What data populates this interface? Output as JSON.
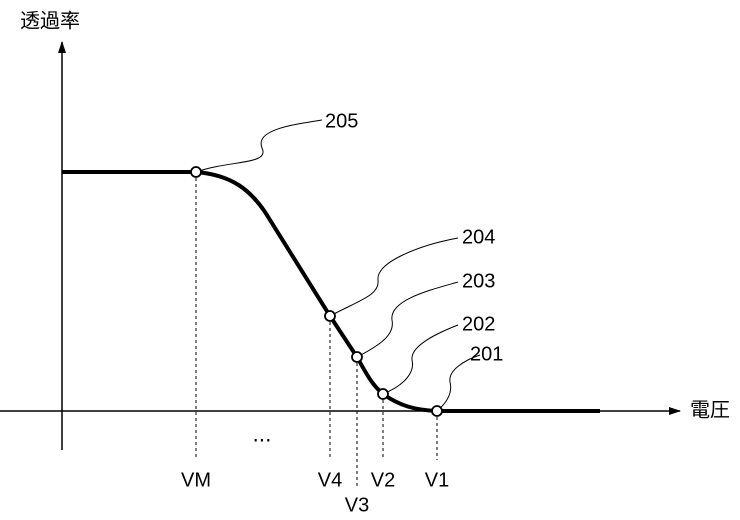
{
  "axes": {
    "y_label": "透過率",
    "x_label": "電圧"
  },
  "x_labels": [
    "VM",
    "V4",
    "V3",
    "V2",
    "V1"
  ],
  "ellipsis": "...",
  "callouts": [
    "205",
    "204",
    "203",
    "202",
    "201"
  ]
}
